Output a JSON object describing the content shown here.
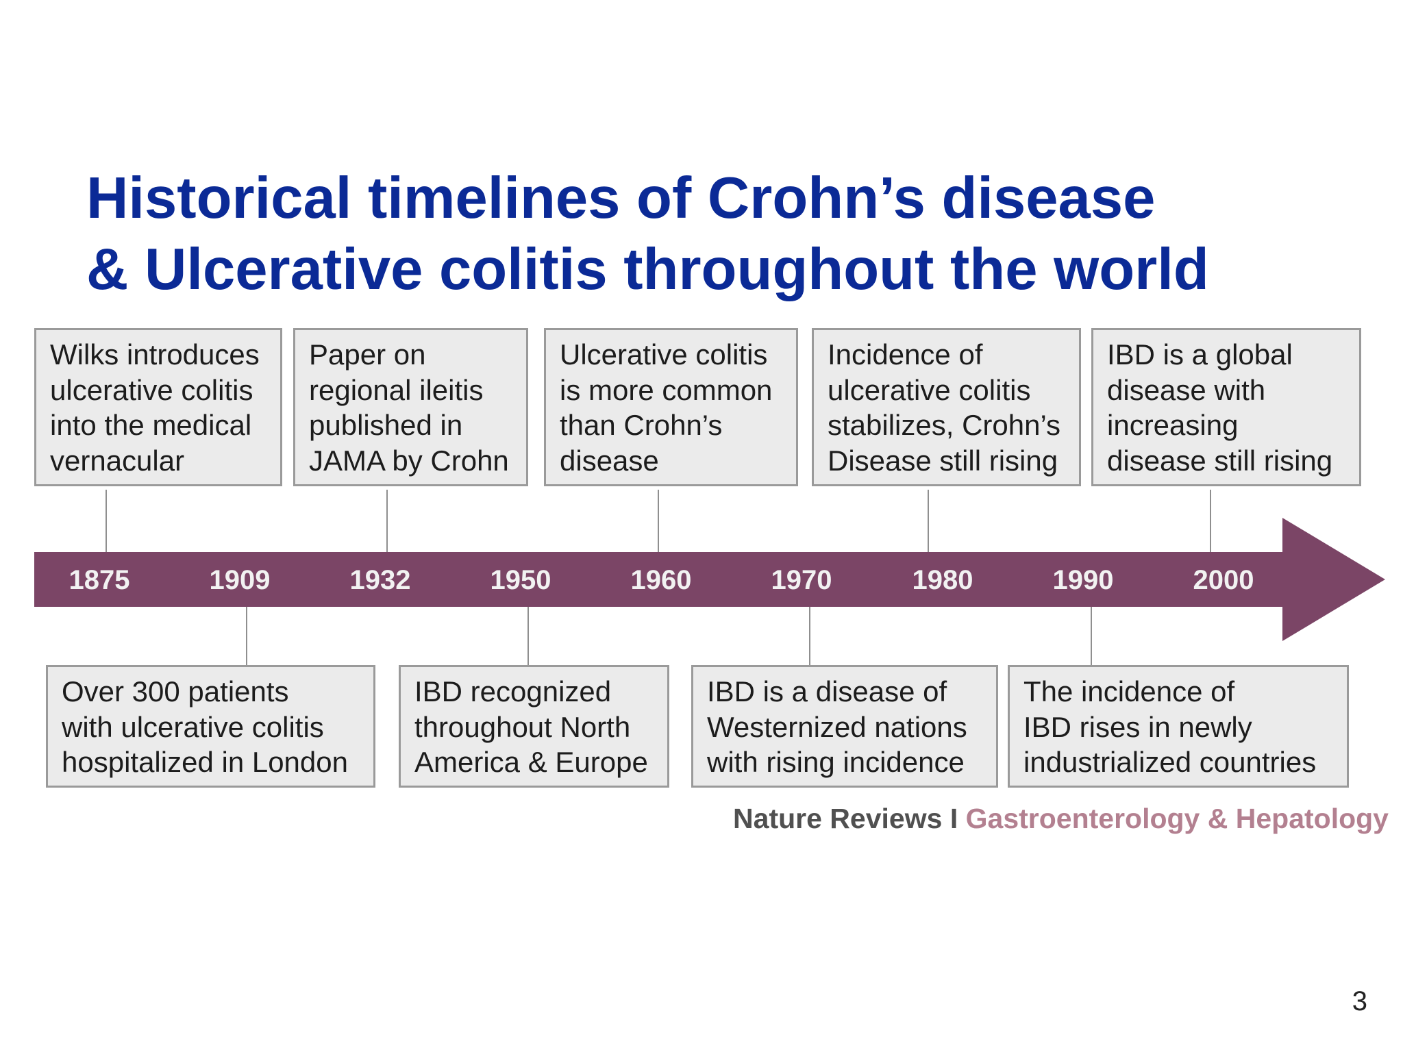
{
  "title": {
    "line1": "Historical timelines of Crohn’s disease",
    "line2": "& Ulcerative colitis throughout the world"
  },
  "timeline": {
    "arrow_color": "#7b4566",
    "years": [
      "1875",
      "1909",
      "1932",
      "1950",
      "1960",
      "1970",
      "1980",
      "1990",
      "2000"
    ]
  },
  "events_top": [
    {
      "lines": [
        "Wilks introduces",
        "ulcerative colitis",
        "into the medical",
        "vernacular"
      ]
    },
    {
      "lines": [
        "Paper on",
        "regional ileitis",
        "published in",
        "JAMA by Crohn"
      ]
    },
    {
      "lines": [
        "Ulcerative colitis",
        "is more common",
        "than Crohn’s",
        "disease"
      ]
    },
    {
      "lines": [
        "Incidence of",
        "ulcerative colitis",
        "stabilizes, Crohn’s",
        "Disease still rising"
      ]
    },
    {
      "lines": [
        "IBD is a global",
        "disease with",
        "increasing",
        "disease still rising"
      ]
    }
  ],
  "events_bottom": [
    {
      "lines": [
        "Over 300 patients",
        "with ulcerative colitis",
        "hospitalized in London"
      ]
    },
    {
      "lines": [
        "IBD recognized",
        "throughout North",
        "America & Europe"
      ]
    },
    {
      "lines": [
        "IBD is a disease of",
        "Westernized nations",
        "with rising incidence"
      ]
    },
    {
      "lines": [
        "The incidence of",
        "IBD rises in newly",
        "industrialized countries"
      ]
    }
  ],
  "source": {
    "publisher": "Nature Reviews",
    "separator": "I",
    "journal": "Gastroenterology & Hepatology"
  },
  "page_number": "3"
}
